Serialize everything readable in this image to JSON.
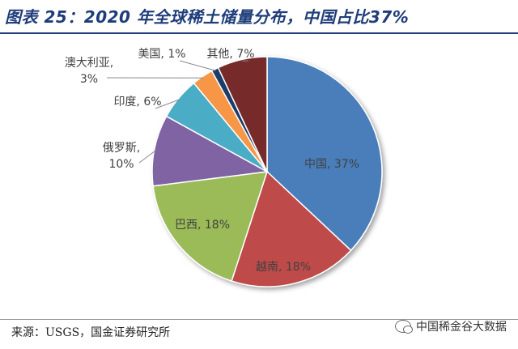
{
  "header": {
    "title": "图表 25：2020 年全球稀土储量分布，中国占比37%"
  },
  "footer": {
    "source": "来源：USGS，国金证券研究所",
    "brand": "中国稀金谷大数据"
  },
  "chart_data": {
    "type": "pie",
    "title": "图表 25：2020 年全球稀土储量分布，中国占比37%",
    "start_angle_deg": 0,
    "direction": "clockwise",
    "slices": [
      {
        "name": "中国",
        "value": 37,
        "label": "中国, 37%",
        "color": "#4a7ebb"
      },
      {
        "name": "越南",
        "value": 18,
        "label": "越南, 18%",
        "color": "#be4b48"
      },
      {
        "name": "巴西",
        "value": 18,
        "label": "巴西, 18%",
        "color": "#9bbb59"
      },
      {
        "name": "俄罗斯",
        "value": 10,
        "label": "俄罗斯, 10%",
        "color": "#8064a2"
      },
      {
        "name": "印度",
        "value": 6,
        "label": "印度, 6%",
        "color": "#4bacc6"
      },
      {
        "name": "澳大利亚",
        "value": 3,
        "label": "澳大利亚, 3%",
        "color": "#f79646"
      },
      {
        "name": "美国",
        "value": 1,
        "label": "美国, 1%",
        "color": "#1f3d6b"
      },
      {
        "name": "其他",
        "value": 7,
        "label": "其他, 7%",
        "color": "#772c2a"
      }
    ]
  }
}
